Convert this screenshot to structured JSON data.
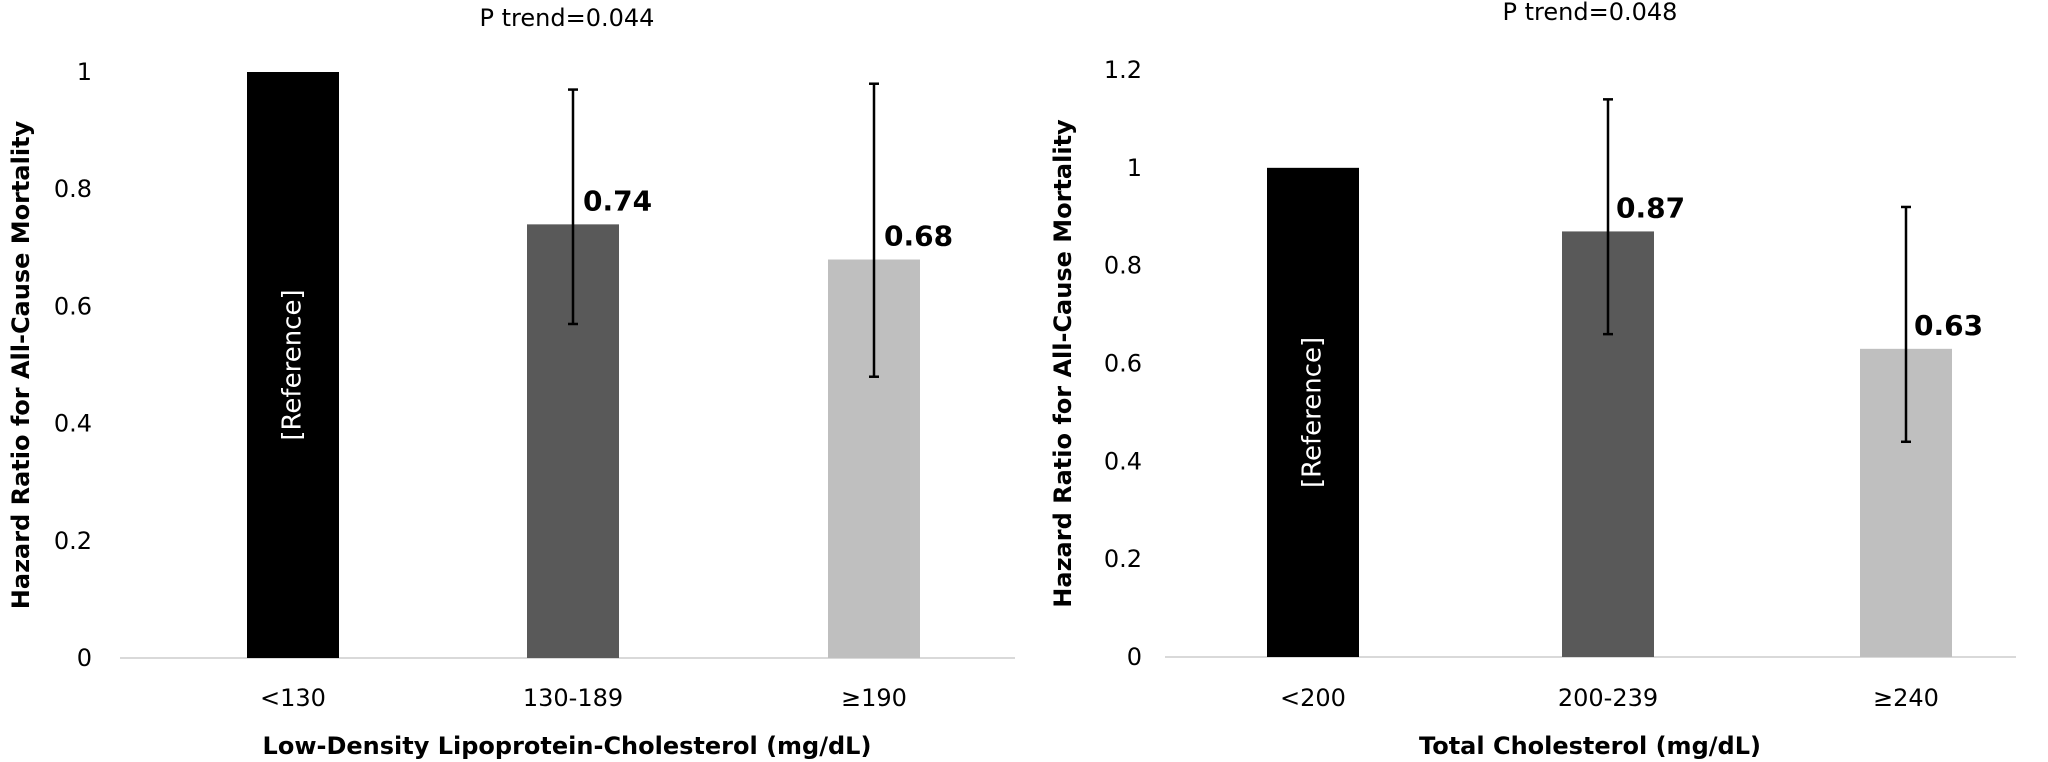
{
  "chart_data": [
    {
      "type": "bar",
      "subtitle": "P trend=0.044",
      "xlabel": "Low-Density Lipoprotein-Cholesterol (mg/dL)",
      "ylabel": "Hazard Ratio for All-Cause Mortality",
      "ylim": [
        0,
        1
      ],
      "yticks": [
        "0",
        "0.2",
        "0.4",
        "0.6",
        "0.8",
        "1"
      ],
      "categories": [
        "<130",
        "130-189",
        "≥190"
      ],
      "values": [
        1,
        0.74,
        0.68
      ],
      "error_low": [
        null,
        0.57,
        0.48
      ],
      "error_high": [
        null,
        0.97,
        0.98
      ],
      "data_labels": [
        "[Reference]",
        "0.74",
        "0.68"
      ],
      "bar_colors": [
        "#000000",
        "#595959",
        "#bfbfbf"
      ],
      "grid": false
    },
    {
      "type": "bar",
      "subtitle": "P trend=0.048",
      "xlabel": "Total Cholesterol (mg/dL)",
      "ylabel": "Hazard Ratio for All-Cause Mortality",
      "ylim": [
        0,
        1.2
      ],
      "yticks": [
        "0",
        "0.2",
        "0.4",
        "0.6",
        "0.8",
        "1",
        "1.2"
      ],
      "categories": [
        "<200",
        "200-239",
        "≥240"
      ],
      "values": [
        1,
        0.87,
        0.63
      ],
      "error_low": [
        null,
        0.66,
        0.44
      ],
      "error_high": [
        null,
        1.14,
        0.92
      ],
      "data_labels": [
        "[Reference]",
        "0.87",
        "0.63"
      ],
      "bar_colors": [
        "#000000",
        "#595959",
        "#bfbfbf"
      ],
      "grid": false
    }
  ]
}
